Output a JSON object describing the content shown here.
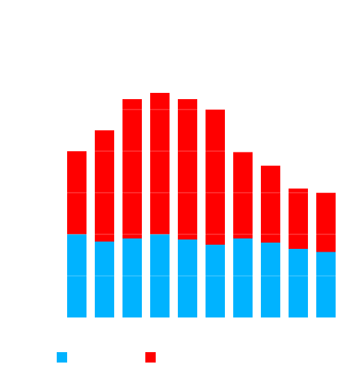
{
  "chart_data": {
    "type": "bar",
    "stacked": true,
    "categories": [
      "",
      "",
      "",
      "",
      "",
      "",
      "",
      "",
      "",
      ""
    ],
    "series": [
      {
        "values": [
          40,
          36.5,
          38,
          40,
          37.5,
          35,
          38,
          36,
          33,
          31.5
        ],
        "color": "#00b3ff"
      },
      {
        "values": [
          40,
          53.5,
          67,
          68,
          67.5,
          65,
          41.5,
          37,
          29,
          28.5
        ],
        "color": "#ff0000"
      }
    ],
    "ylim": [
      0,
      120
    ],
    "grid": true,
    "legend_position": "bottom-left",
    "title": "",
    "xlabel": "",
    "ylabel": ""
  }
}
